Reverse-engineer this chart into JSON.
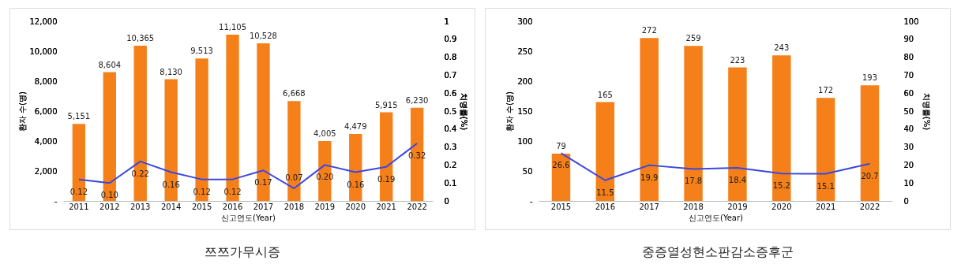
{
  "chart_data": [
    {
      "type": "bar",
      "title": "쯔쯔가무시증",
      "xlabel": "신고연도(Year)",
      "ylabel": "환자 수(명)",
      "y2label": "치명률(%)",
      "categories": [
        "2011",
        "2012",
        "2013",
        "2014",
        "2015",
        "2016",
        "2017",
        "2018",
        "2019",
        "2020",
        "2021",
        "2022"
      ],
      "series": [
        {
          "color": "#f5801a",
          "values": [
            5151,
            8604,
            10365,
            8130,
            9513,
            11105,
            10528,
            6668,
            4005,
            4479,
            5915,
            6230
          ],
          "value_labels": [
            "5,151",
            "8,604",
            "10,365",
            "8,130",
            "9,513",
            "11,105",
            "10,528",
            "6,668",
            "4,005",
            "4,479",
            "5,915",
            "6,230"
          ]
        },
        {
          "type": "line",
          "axis": "y2",
          "color": "#3b46e0",
          "values": [
            0.12,
            0.1,
            0.22,
            0.16,
            0.12,
            0.12,
            0.17,
            0.07,
            0.2,
            0.16,
            0.19,
            0.32
          ],
          "value_labels": [
            "0.12",
            "0.10",
            "0.22",
            "0.16",
            "0.12",
            "0.12",
            "0.17",
            "0.07",
            "0.20",
            "0.16",
            "0.19",
            "0.32"
          ]
        }
      ],
      "ylim": [
        0,
        12000
      ],
      "yticks": [
        {
          "value": 0,
          "label": "-"
        },
        {
          "value": 2000,
          "label": "2,000"
        },
        {
          "value": 4000,
          "label": "4,000"
        },
        {
          "value": 6000,
          "label": "6,000"
        },
        {
          "value": 8000,
          "label": "8,000"
        },
        {
          "value": 10000,
          "label": "10,000"
        },
        {
          "value": 12000,
          "label": "12,000"
        }
      ],
      "y2lim": [
        0,
        1
      ],
      "y2ticks": [
        0,
        0.1,
        0.2,
        0.3,
        0.4,
        0.5,
        0.6,
        0.7,
        0.8,
        0.9,
        1
      ]
    },
    {
      "type": "bar",
      "title": "중증열성현소판감소증후군",
      "xlabel": "신고연도(Year)",
      "ylabel": "환자 수(명)",
      "y2label": "치명률(%)",
      "categories": [
        "2015",
        "2016",
        "2017",
        "2018",
        "2019",
        "2020",
        "2021",
        "2022"
      ],
      "series": [
        {
          "color": "#f5801a",
          "values": [
            79,
            165,
            272,
            259,
            223,
            243,
            172,
            193
          ],
          "value_labels": [
            "79",
            "165",
            "272",
            "259",
            "223",
            "243",
            "172",
            "193"
          ]
        },
        {
          "type": "line",
          "axis": "y2",
          "color": "#3b46e0",
          "values": [
            26.6,
            11.5,
            19.9,
            17.8,
            18.4,
            15.2,
            15.1,
            20.7
          ],
          "value_labels": [
            "26.6",
            "11.5",
            "19.9",
            "17.8",
            "18.4",
            "15.2",
            "15.1",
            "20.7"
          ]
        }
      ],
      "ylim": [
        0,
        300
      ],
      "yticks": [
        {
          "value": 0,
          "label": "-"
        },
        50,
        100,
        150,
        200,
        250,
        300
      ],
      "y2lim": [
        0,
        100
      ],
      "y2ticks": [
        0,
        10,
        20,
        30,
        40,
        50,
        60,
        70,
        80,
        90,
        100
      ]
    }
  ]
}
